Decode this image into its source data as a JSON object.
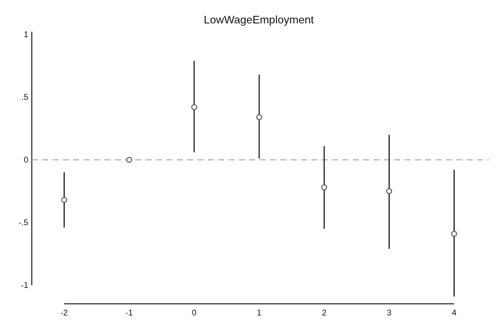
{
  "chart_data": {
    "type": "scatter",
    "title": "LowWageEmployment",
    "xlabel": "",
    "ylabel": "",
    "x_ticks": [
      "-2",
      "-1",
      "0",
      "1",
      "2",
      "3",
      "4"
    ],
    "y_ticks": [
      "1",
      ".5",
      "0",
      "-.5",
      "-1"
    ],
    "ylim": [
      -1.1,
      1.0
    ],
    "xlim": [
      -2,
      4
    ],
    "reference_line": {
      "y": 0,
      "style": "dashed"
    },
    "grid": false,
    "points": [
      {
        "x": -2,
        "y": -0.32,
        "ci_low": -0.54,
        "ci_high": -0.1
      },
      {
        "x": -1,
        "y": 0.0,
        "ci_low": null,
        "ci_high": null
      },
      {
        "x": 0,
        "y": 0.42,
        "ci_low": 0.06,
        "ci_high": 0.79
      },
      {
        "x": 1,
        "y": 0.34,
        "ci_low": 0.01,
        "ci_high": 0.68
      },
      {
        "x": 2,
        "y": -0.22,
        "ci_low": -0.55,
        "ci_high": 0.11
      },
      {
        "x": 3,
        "y": -0.25,
        "ci_low": -0.71,
        "ci_high": 0.2
      },
      {
        "x": 4,
        "y": -0.59,
        "ci_low": -1.09,
        "ci_high": -0.08
      }
    ],
    "colors": {
      "marker": "#555555",
      "ci": "#111111",
      "axis": "#222222",
      "reference": "#999999"
    }
  }
}
